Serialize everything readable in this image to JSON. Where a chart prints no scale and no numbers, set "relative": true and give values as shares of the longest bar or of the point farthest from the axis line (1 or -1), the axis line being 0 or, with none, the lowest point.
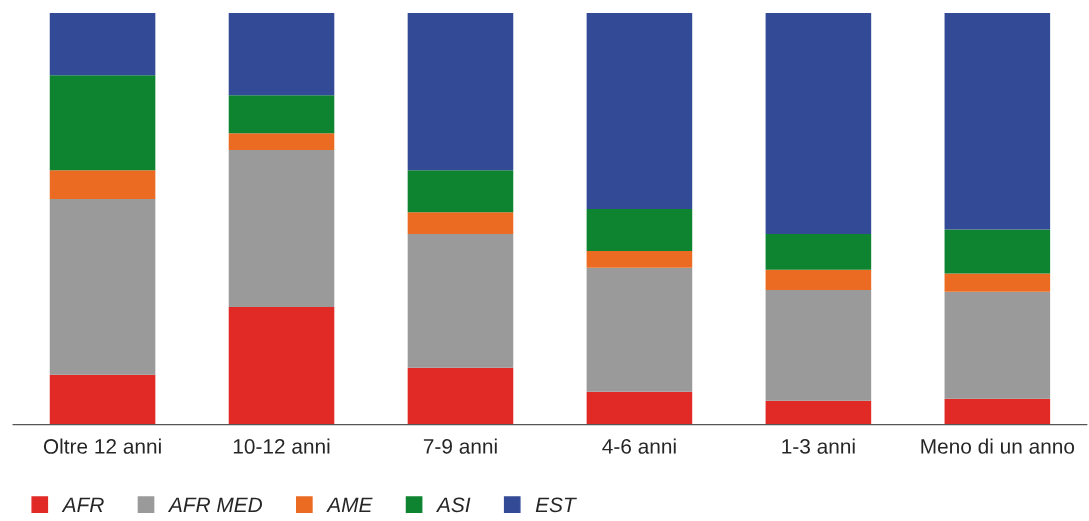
{
  "chart_data": {
    "type": "bar",
    "stacked": true,
    "relative": true,
    "legend": "bottom left",
    "marker": "square",
    "categories": [
      "Oltre 12 anni",
      "10-12 anni",
      "7-9 anni",
      "4-6 anni",
      "1-3 anni",
      "Meno di un anno"
    ],
    "series": [
      {
        "name": "AFR",
        "color": "#e12a26",
        "values": [
          0.121,
          0.286,
          0.138,
          0.08,
          0.058,
          0.063
        ]
      },
      {
        "name": "AFR MED",
        "color": "#9a9a9a",
        "values": [
          0.427,
          0.381,
          0.325,
          0.301,
          0.269,
          0.26
        ]
      },
      {
        "name": "AME",
        "color": "#eb6b23",
        "values": [
          0.07,
          0.041,
          0.053,
          0.041,
          0.049,
          0.044
        ]
      },
      {
        "name": "ASI",
        "color": "#0e8431",
        "values": [
          0.231,
          0.092,
          0.102,
          0.102,
          0.087,
          0.107
        ]
      },
      {
        "name": "EST",
        "color": "#334b96",
        "values": [
          0.151,
          0.2,
          0.382,
          0.476,
          0.537,
          0.526
        ]
      }
    ]
  }
}
